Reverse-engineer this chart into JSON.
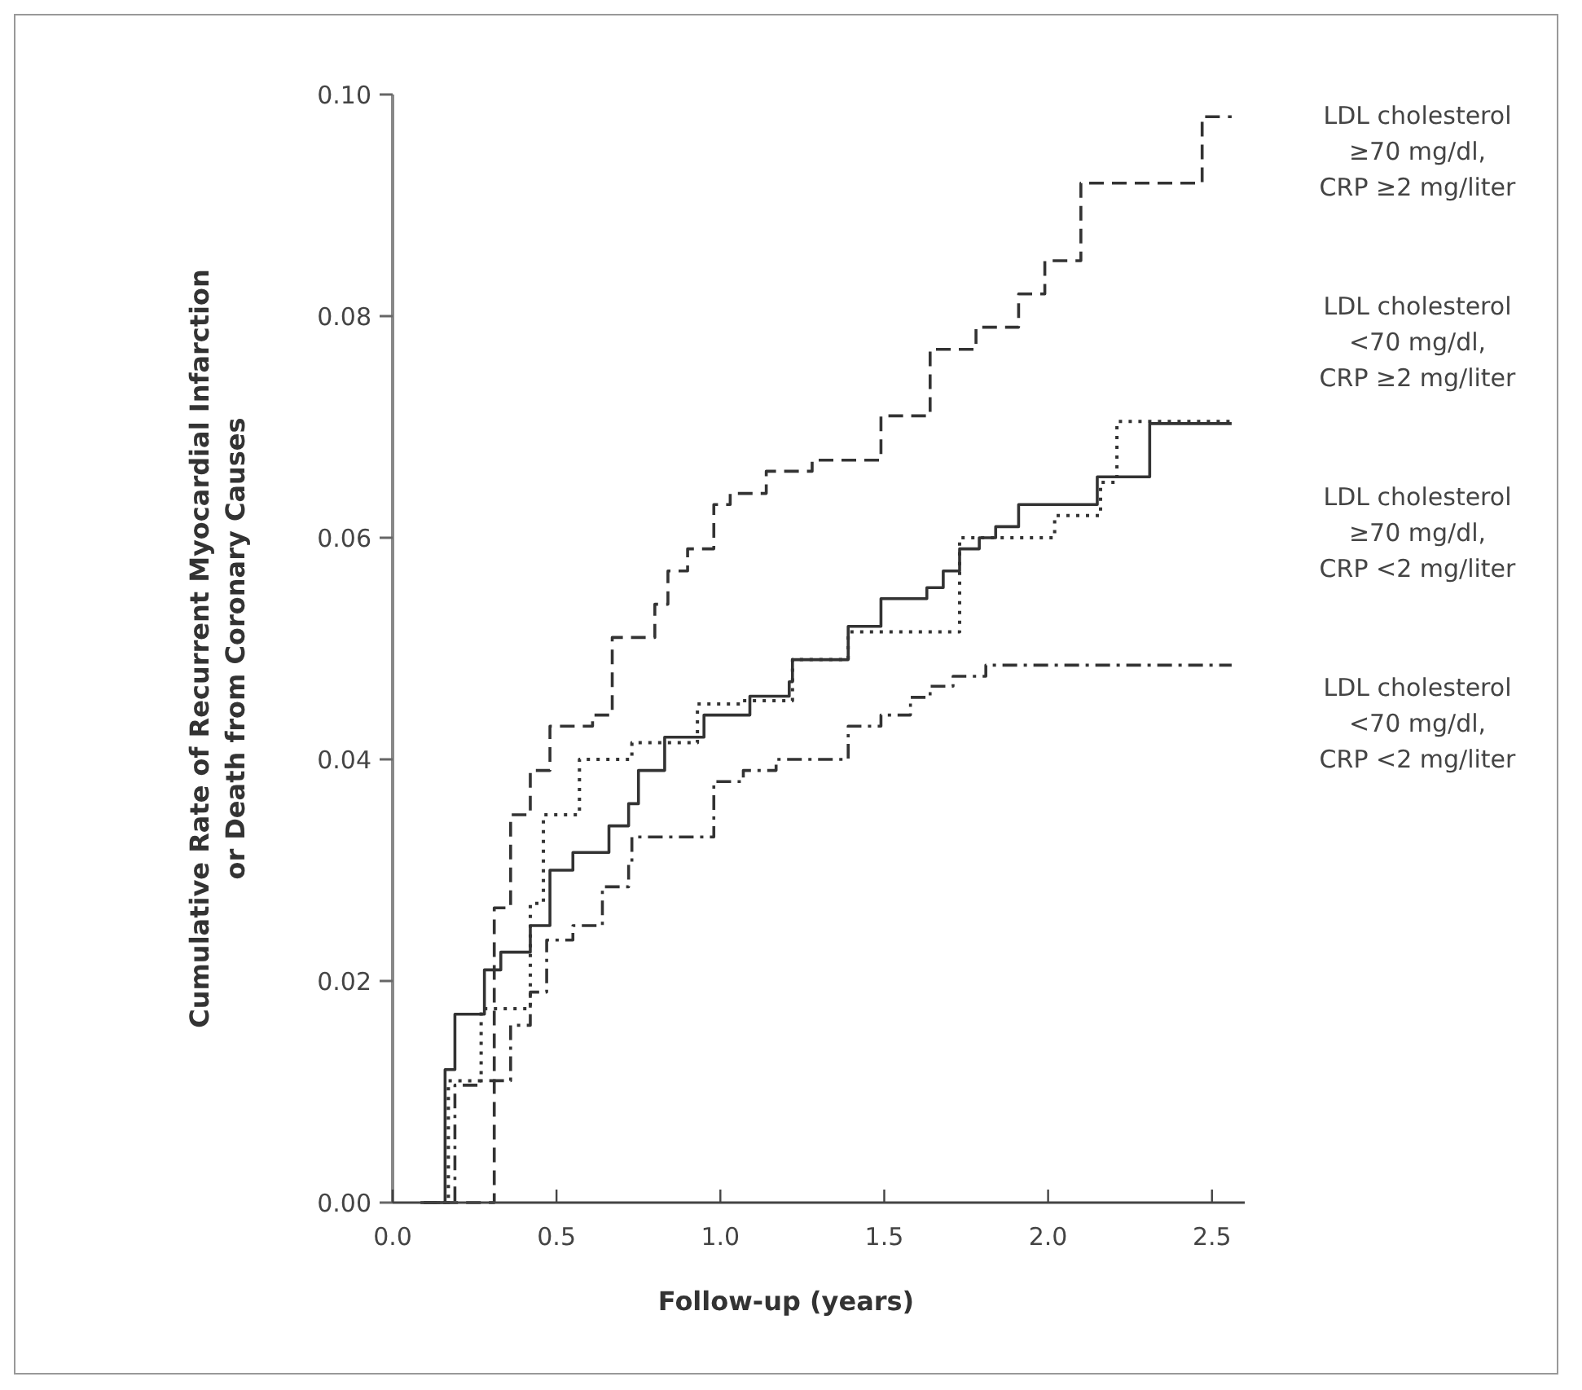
{
  "chart_data": {
    "type": "step",
    "xlabel": "Follow-up (years)",
    "ylabel": "Cumulative Rate of Recurrent Myocardial Infarction\nor Death from Coronary Causes",
    "xlim": [
      0,
      2.6
    ],
    "ylim": [
      0,
      0.1
    ],
    "xticks": [
      {
        "value": 0,
        "label": "0.0"
      },
      {
        "value": 0.5,
        "label": "0.5"
      },
      {
        "value": 1,
        "label": "1.0"
      },
      {
        "value": 1.5,
        "label": "1.5"
      },
      {
        "value": 2,
        "label": "2.0"
      },
      {
        "value": 2.5,
        "label": "2.5"
      }
    ],
    "yticks": [
      {
        "value": 0,
        "label": "0.00"
      },
      {
        "value": 0.02,
        "label": "0.02"
      },
      {
        "value": 0.04,
        "label": "0.04"
      },
      {
        "value": 0.06,
        "label": "0.06"
      },
      {
        "value": 0.08,
        "label": "0.08"
      },
      {
        "value": 0.1,
        "label": "0.10"
      }
    ],
    "grid": false,
    "marker": "none",
    "series": [
      {
        "name": "LDL cholesterol ≥70 mg/dl, CRP ≥2 mg/liter",
        "color": "#333333",
        "line_style": "dashed",
        "x": [
          0.085,
          0.31,
          0.36,
          0.42,
          0.48,
          0.61,
          0.67,
          0.8,
          0.84,
          0.9,
          0.98,
          1.03,
          1.14,
          1.28,
          1.44,
          1.49,
          1.64,
          1.78,
          1.91,
          1.99,
          2.1,
          2.47,
          2.56
        ],
        "values": [
          0,
          0.0266,
          0.035,
          0.039,
          0.043,
          0.044,
          0.051,
          0.054,
          0.057,
          0.059,
          0.063,
          0.064,
          0.066,
          0.067,
          0.067,
          0.071,
          0.077,
          0.079,
          0.082,
          0.085,
          0.092,
          0.098,
          0.098
        ]
      },
      {
        "name": "LDL cholesterol <70 mg/dl, CRP ≥2 mg/liter",
        "color": "#333333",
        "line_style": "dotted",
        "x": [
          0.095,
          0.17,
          0.27,
          0.42,
          0.46,
          0.57,
          0.73,
          0.93,
          1.06,
          1.22,
          1.39,
          1.73,
          2.02,
          2.16,
          2.21,
          2.56
        ],
        "values": [
          0,
          0.011,
          0.0175,
          0.027,
          0.035,
          0.04,
          0.0415,
          0.045,
          0.0453,
          0.049,
          0.0515,
          0.06,
          0.062,
          0.065,
          0.0705,
          0.0705
        ]
      },
      {
        "name": "LDL cholesterol ≥70 mg/dl, CRP <2 mg/liter",
        "color": "#333333",
        "line_style": "solid",
        "x": [
          0.095,
          0.16,
          0.19,
          0.28,
          0.33,
          0.42,
          0.48,
          0.55,
          0.66,
          0.72,
          0.75,
          0.83,
          0.95,
          1.09,
          1.21,
          1.22,
          1.39,
          1.49,
          1.63,
          1.68,
          1.73,
          1.79,
          1.84,
          1.91,
          2.15,
          2.31,
          2.56
        ],
        "values": [
          0,
          0.012,
          0.017,
          0.021,
          0.0226,
          0.025,
          0.03,
          0.0316,
          0.034,
          0.036,
          0.039,
          0.042,
          0.044,
          0.0457,
          0.047,
          0.049,
          0.052,
          0.0545,
          0.0555,
          0.057,
          0.059,
          0.06,
          0.061,
          0.063,
          0.0655,
          0.0703,
          0.0703
        ]
      },
      {
        "name": "LDL cholesterol <70 mg/dl, CRP <2 mg/liter",
        "color": "#333333",
        "line_style": "dashdot",
        "x": [
          0.1,
          0.19,
          0.27,
          0.36,
          0.42,
          0.47,
          0.55,
          0.64,
          0.72,
          0.73,
          0.98,
          1.07,
          1.17,
          1.39,
          1.49,
          1.58,
          1.64,
          1.71,
          1.81,
          2.56
        ],
        "values": [
          0,
          0.0106,
          0.011,
          0.016,
          0.019,
          0.0237,
          0.025,
          0.0285,
          0.0305,
          0.033,
          0.038,
          0.039,
          0.04,
          0.043,
          0.044,
          0.0456,
          0.0466,
          0.0475,
          0.0485,
          0.0485
        ]
      }
    ]
  }
}
